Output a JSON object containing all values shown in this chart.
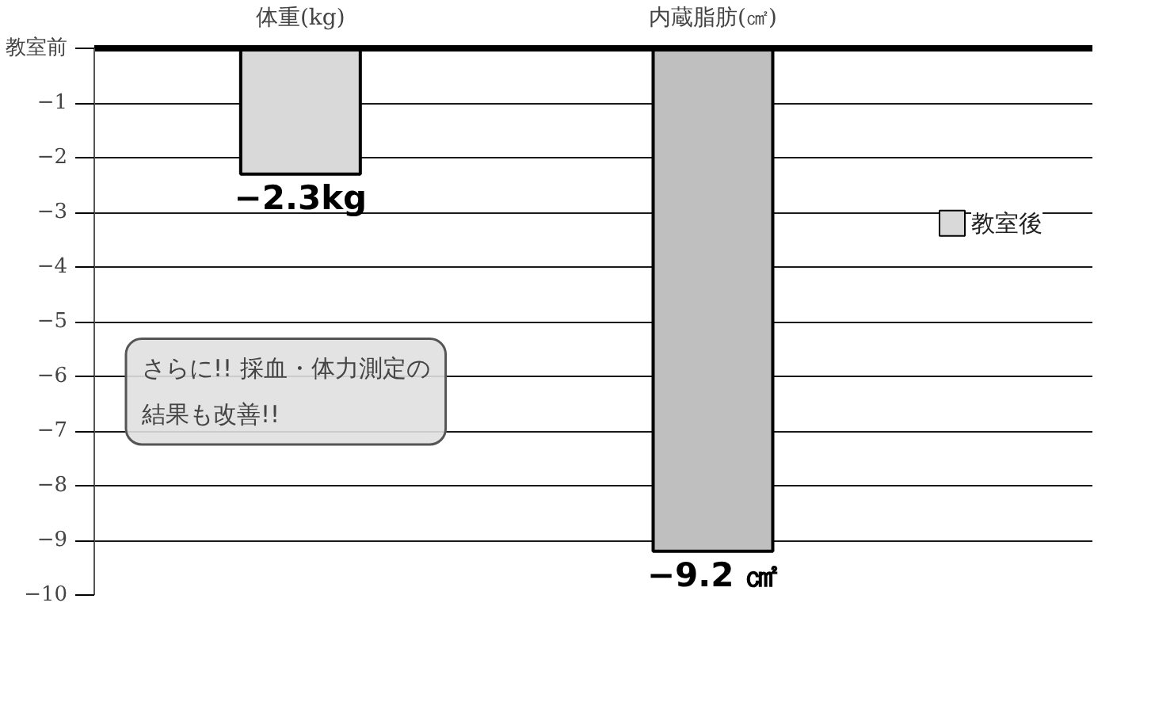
{
  "chart_data": {
    "type": "bar",
    "categories": [
      "体重(kg)",
      "内蔵脂肪(㎠)"
    ],
    "series": [
      {
        "name": "教室後",
        "color": "#d9d9d9",
        "colors": [
          "#d9d9d9",
          "#bfbfbf"
        ],
        "values": [
          -2.3,
          -9.2
        ],
        "value_labels": [
          "−2.3kg",
          "−9.2 ㎠"
        ]
      }
    ],
    "ylim": [
      -10,
      0
    ],
    "yticks": [
      {
        "value": 0,
        "label": "教室前"
      },
      -1,
      -2,
      -3,
      -4,
      -5,
      -6,
      -7,
      -8,
      -9,
      -10
    ],
    "grid": "y",
    "legend": "right",
    "annotations": [
      "さらに!! 採血・体力測定の結果も改善!!"
    ]
  }
}
